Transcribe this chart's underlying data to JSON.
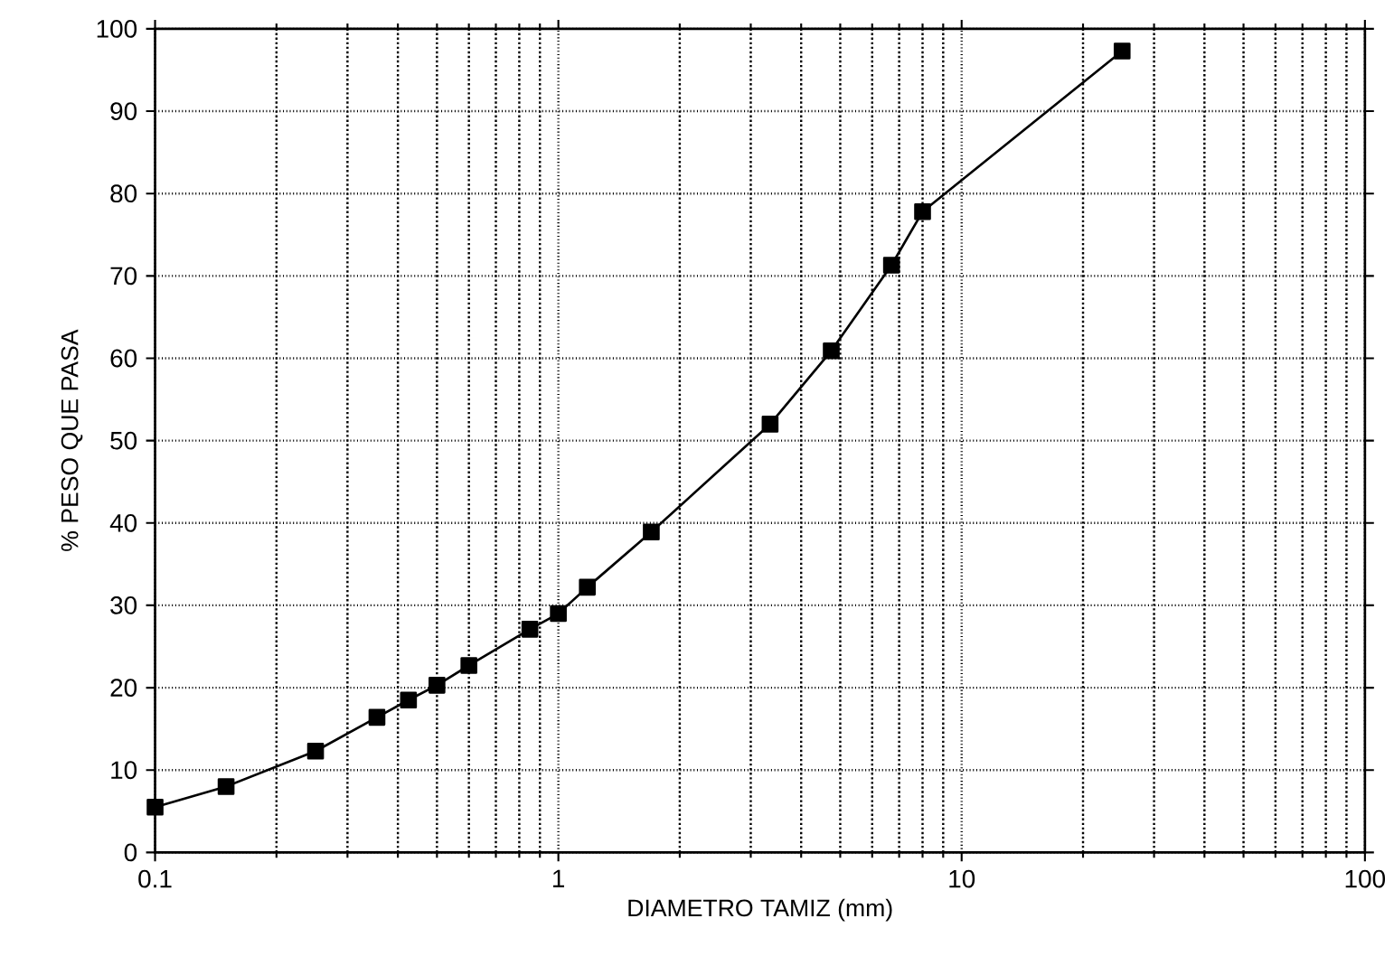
{
  "chart_data": {
    "type": "line",
    "xlabel": "DIAMETRO TAMIZ (mm)",
    "ylabel": "% PESO QUE PASA",
    "log": "x",
    "grid": true,
    "marker": "square",
    "line_style": "solid",
    "xlim": [
      0.1,
      100
    ],
    "xticks": [
      0.1,
      1,
      10,
      100
    ],
    "ylim": [
      0,
      100
    ],
    "yticks": [
      0,
      10,
      20,
      30,
      40,
      50,
      60,
      70,
      80,
      90,
      100
    ],
    "series": [
      {
        "color": "#000000",
        "x": [
          0.1,
          0.15,
          0.25,
          0.355,
          0.425,
          0.5,
          0.6,
          0.85,
          1.0,
          1.18,
          1.7,
          3.35,
          4.75,
          6.7,
          8,
          25
        ],
        "values": [
          5.5,
          8.0,
          12.3,
          16.4,
          18.5,
          20.3,
          22.7,
          27.1,
          29.0,
          32.2,
          38.9,
          52,
          60.9,
          71.3,
          77.8,
          97.3
        ]
      }
    ]
  }
}
